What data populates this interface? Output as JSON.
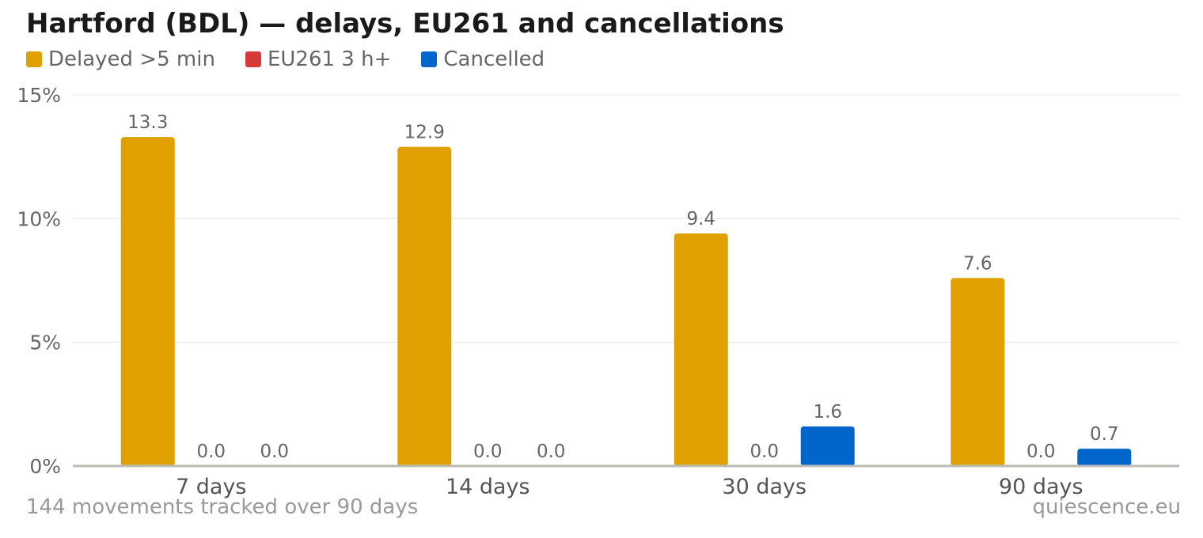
{
  "chart_data": {
    "type": "bar",
    "title": "Hartford (BDL) — delays, EU261 and cancellations",
    "categories": [
      "7 days",
      "14 days",
      "30 days",
      "90 days"
    ],
    "series": [
      {
        "name": "Delayed >5 min",
        "color": "#e0a000",
        "values": [
          13.3,
          12.9,
          9.4,
          7.6
        ],
        "labels": [
          "13.3",
          "12.9",
          "9.4",
          "7.6"
        ]
      },
      {
        "name": "EU261 3 h+",
        "color": "#d63a3a",
        "values": [
          0,
          0,
          0,
          0
        ],
        "labels": [
          "0.0",
          "0.0",
          "0.0",
          "0.0"
        ]
      },
      {
        "name": "Cancelled",
        "color": "#0066cc",
        "values": [
          0,
          0,
          1.6,
          0.7
        ],
        "labels": [
          "0.0",
          "0.0",
          "1.6",
          "0.7"
        ]
      }
    ],
    "ylim": [
      0,
      15
    ],
    "yticks": [
      0,
      5,
      10,
      15
    ],
    "ytick_labels": [
      "0%",
      "5%",
      "10%",
      "15%"
    ],
    "grid": true,
    "legend": "top-left"
  },
  "footer": {
    "note": "144 movements tracked over 90 days",
    "source": "quiescence.eu"
  }
}
